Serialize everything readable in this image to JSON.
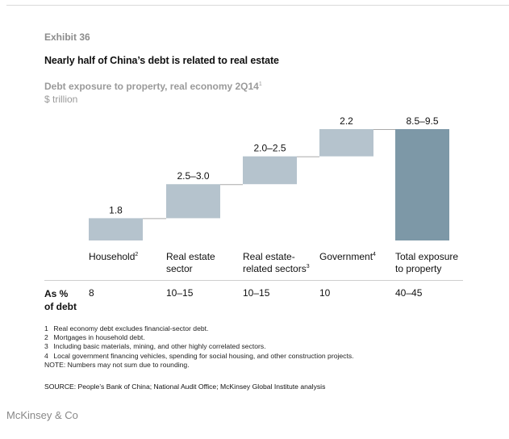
{
  "header": {
    "exhibit": "Exhibit 36",
    "title": "Nearly half of China’s debt is related to real estate",
    "subtitle": "Debt exposure to property, real economy 2Q14",
    "subtitle_footnote": "1",
    "unit": "$ trillion"
  },
  "chart_data": {
    "type": "waterfall",
    "title": "Debt exposure to property, real economy 2Q14",
    "ylabel": "$ trillion",
    "categories": [
      "Household",
      "Real estate sector",
      "Real estate-related sectors",
      "Government",
      "Total exposure to property"
    ],
    "category_lines": [
      [
        "Household"
      ],
      [
        "Real estate",
        "sector"
      ],
      [
        "Real estate-",
        "related sectors"
      ],
      [
        "Government"
      ],
      [
        "Total exposure",
        "to property"
      ]
    ],
    "category_footnotes": [
      "2",
      "",
      "3",
      "4",
      ""
    ],
    "value_labels": [
      "1.8",
      "2.5–3.0",
      "2.0–2.5",
      "2.2",
      "8.5–9.5"
    ],
    "values": [
      1.8,
      2.75,
      2.25,
      2.2,
      9.0
    ],
    "is_total": [
      false,
      false,
      false,
      false,
      true
    ],
    "colors": {
      "component": "#b5c3cd",
      "total": "#7d98a7",
      "connector": "#aaaaaa"
    },
    "pct_of_debt_label": [
      "As %",
      "of debt"
    ],
    "pct_of_debt": [
      "8",
      "10–15",
      "10–15",
      "10",
      "40–45"
    ]
  },
  "footnotes": [
    {
      "num": "1",
      "text": "Real economy debt excludes financial-sector debt."
    },
    {
      "num": "2",
      "text": "Mortgages in household debt."
    },
    {
      "num": "3",
      "text": "Including basic materials, mining, and other highly correlated sectors."
    },
    {
      "num": "4",
      "text": "Local government financing vehicles, spending for social housing, and other construction projects."
    }
  ],
  "note": "NOTE: Numbers may not sum due to rounding.",
  "source": "SOURCE:  People’s Bank of China; National Audit Office; McKinsey Global Institute analysis",
  "brand": "McKinsey & Co"
}
